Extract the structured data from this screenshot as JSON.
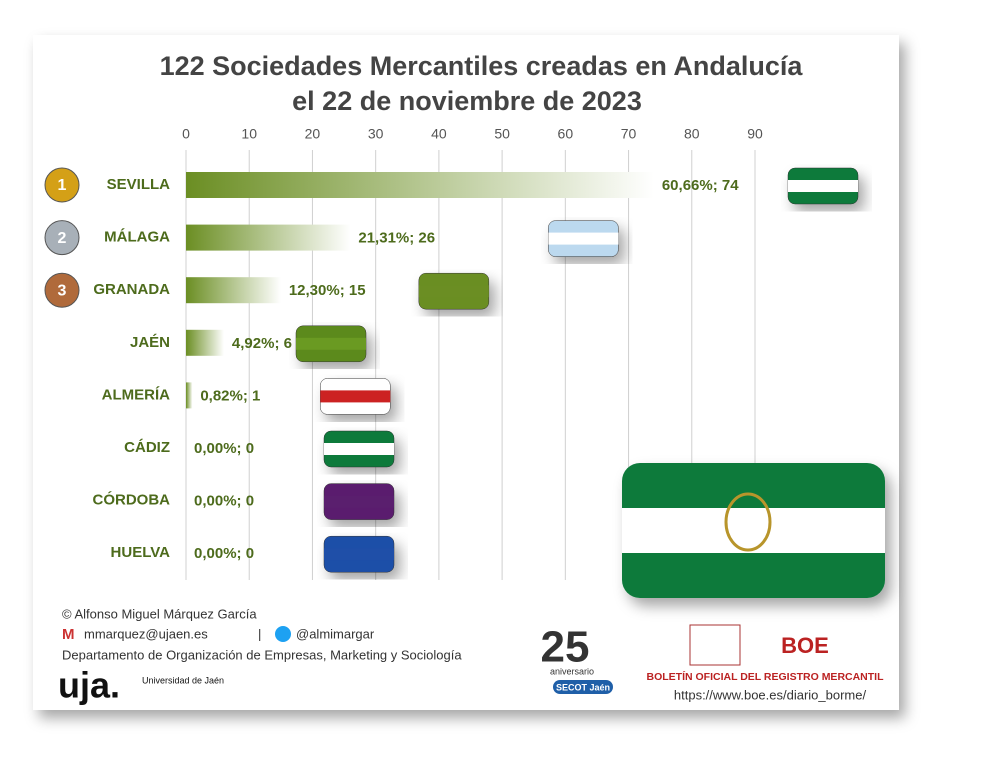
{
  "chart_data": {
    "type": "bar",
    "orientation": "horizontal",
    "title": [
      "122 Sociedades Mercantiles creadas en Andalucía",
      "el 22 de noviembre de 2023"
    ],
    "categories": [
      "SEVILLA",
      "MÁLAGA",
      "GRANADA",
      "JAÉN",
      "ALMERÍA",
      "CÁDIZ",
      "CÓRDOBA",
      "HUELVA"
    ],
    "values": [
      74,
      26,
      15,
      6,
      1,
      0,
      0,
      0
    ],
    "value_labels": [
      "60,66%; 74",
      "21,31%; 26",
      "12,30%; 15",
      "4,92%; 6",
      "0,82%; 1",
      "0,00%; 0",
      "0,00%; 0",
      "0,00%; 0"
    ],
    "color": "#6b8e23",
    "xlim": [
      0,
      90
    ],
    "xticks": [
      0,
      10,
      20,
      30,
      40,
      50,
      60,
      70,
      80,
      90
    ],
    "grid": true,
    "medals": [
      "1",
      "2",
      "3"
    ]
  },
  "footer": {
    "author": "© Alfonso Miguel Márquez García",
    "email": "mmarquez@ujaen.es",
    "separator": "|",
    "twitter": "@almimargar",
    "department": "Departamento de Organización de Empresas, Marketing y Sociología",
    "uja": "uja.",
    "university": "Universidad de Jaén",
    "anniversary": "25",
    "anniversary_text": "aniversario",
    "secot": "SECOT Jaén",
    "boe": "BOE",
    "boe_title": "BOLETÍN OFICIAL DEL REGISTRO MERCANTIL",
    "boe_url": "https://www.boe.es/diario_borme/"
  }
}
